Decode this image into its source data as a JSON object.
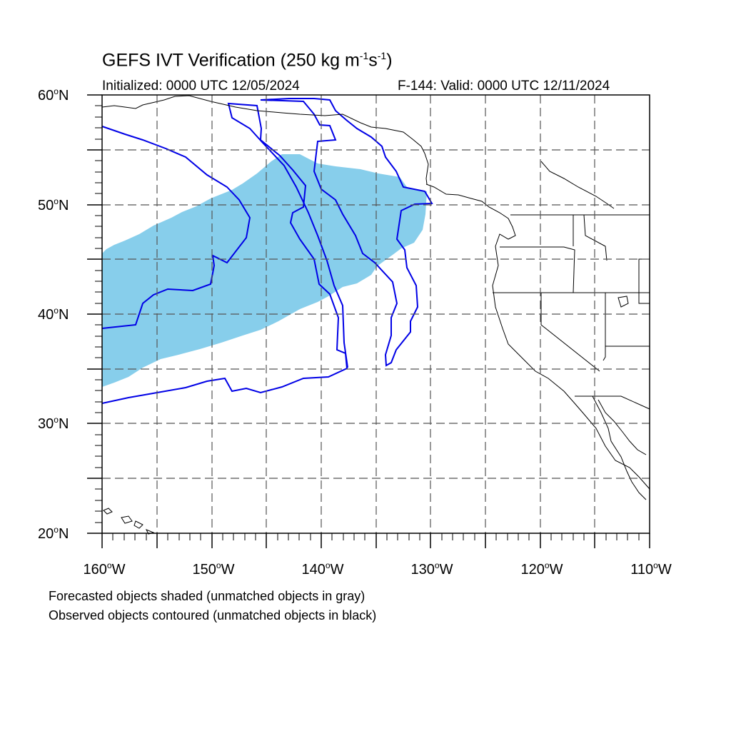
{
  "title": {
    "main": "GEFS IVT Verification (250 kg m",
    "exp1": "-1",
    "mid": "s",
    "exp2": "-1",
    "close": ")"
  },
  "subtitle": {
    "initialized": "Initialized: 0000 UTC 12/05/2024",
    "valid": "F-144: Valid: 0000 UTC 12/11/2024"
  },
  "lat_labels": [
    "60",
    "50",
    "40",
    "30",
    "20"
  ],
  "lat_suffix": "N",
  "lon_labels": [
    "160",
    "150",
    "140",
    "130",
    "120",
    "110"
  ],
  "lon_suffix": "W",
  "degree_symbol": "o",
  "extent": {
    "lon_min": -160,
    "lon_max": -110,
    "lat_min": 20,
    "lat_max": 60
  },
  "legend": {
    "line1": "Forecasted objects shaded (unmatched objects in gray)",
    "line2": "Observed objects contoured (unmatched objects in black)"
  },
  "colors": {
    "forecast_fill": "#87ceeb",
    "observed_contour": "#0000e6",
    "coastline": "#000000",
    "grid": "#555555"
  }
}
